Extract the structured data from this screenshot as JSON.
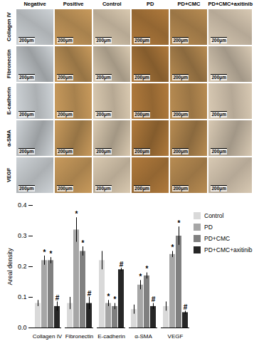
{
  "figure": {
    "columns": [
      "Negative",
      "Positive",
      "Control",
      "PD",
      "PD+CMC",
      "PD+CMC+axitinib"
    ],
    "rows": [
      "Collagen IV",
      "Fibronectin",
      "E-cadherin",
      "α-SMA",
      "VEGF"
    ],
    "scale_bar": "200μm"
  },
  "chart_data": {
    "type": "bar",
    "y_label": "Areal density",
    "categories": [
      "Collagen IV",
      "Fibronectin",
      "E-cadherin",
      "α-SMA",
      "VEGF"
    ],
    "series": [
      {
        "name": "Control",
        "color": "#d9d9d9",
        "values": [
          0.08,
          0.08,
          0.22,
          0.06,
          0.07
        ],
        "errors": [
          0.01,
          0.02,
          0.03,
          0.015,
          0.015
        ],
        "significance": [
          null,
          null,
          null,
          null,
          null
        ]
      },
      {
        "name": "PD",
        "color": "#a6a6a6",
        "values": [
          0.22,
          0.32,
          0.08,
          0.14,
          0.24
        ],
        "errors": [
          0.015,
          0.04,
          0.01,
          0.015,
          0.01
        ],
        "significance": [
          "*",
          "*",
          "*",
          "*",
          "*"
        ]
      },
      {
        "name": "PD+CMC",
        "color": "#808080",
        "values": [
          0.22,
          0.25,
          0.07,
          0.17,
          0.3
        ],
        "errors": [
          0.01,
          0.015,
          0.01,
          0.01,
          0.03
        ],
        "significance": [
          "*",
          "*",
          "*",
          "*",
          "*"
        ]
      },
      {
        "name": "PD+CMC+axitinib",
        "color": "#262626",
        "values": [
          0.07,
          0.08,
          0.19,
          0.07,
          0.05
        ],
        "errors": [
          0.015,
          0.02,
          0.005,
          0.01,
          0.005
        ],
        "significance": [
          "#",
          "#",
          "#",
          "#",
          "#"
        ]
      }
    ],
    "ylim": [
      0,
      0.4
    ],
    "yticks": [
      {
        "value": 0,
        "label": "0.0"
      },
      0.1,
      0.2,
      0.3,
      0.4
    ],
    "grid": false,
    "legend": "right"
  }
}
